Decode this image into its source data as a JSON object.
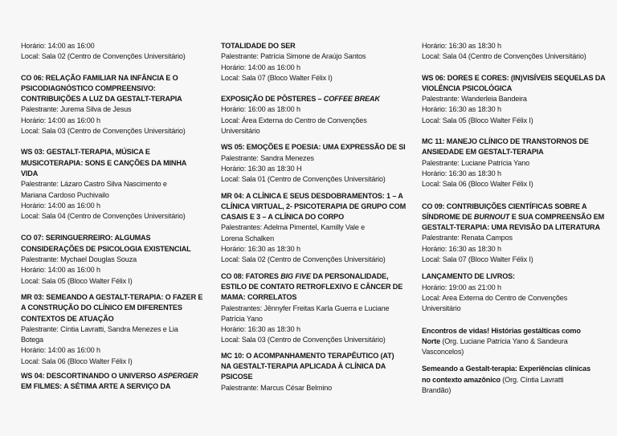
{
  "columns": [
    {
      "blocks": [
        {
          "title": [],
          "details": [
            "Horário: 14:00 as 16:00",
            "Local: Sala 02 (Centro de Convenções Universitário)"
          ]
        },
        {
          "title": [
            "CO 06: RELAÇÃO FAMILIAR NA INFÂNCIA E O",
            "PSICODIAGNÓSTICO COMPREENSIVO:",
            "CONTRIBUIÇÕES A LUZ DA GESTALT-TERAPIA"
          ],
          "details": [
            "Palestrante: Jurema Silva de Jesus",
            "Horário: 14:00  as 16:00 h",
            "Local: Sala 03 (Centro de Convenções Universitário)"
          ]
        },
        {
          "title": [
            "WS 03: GESTALT-TERAPIA, MÚSICA E",
            "MUSICOTERAPIA: SONS E CANÇÕES DA MINHA",
            "VIDA"
          ],
          "details": [
            "Palestrante: Lázaro Castro Silva Nascimento e",
            "Mariana Cardoso Puchivailo",
            "Horário: 14:00  as 16:00 h",
            "Local: Sala 04 (Centro de Convenções Universitário)"
          ]
        },
        {
          "title": [
            "CO 07: SERINGUERREIRO: ALGUMAS",
            "CONSIDERAÇÕES DE PSICOLOGIA EXISTENCIAL"
          ],
          "details": [
            "Palestrante: Mychael Douglas Souza",
            "Horário: 14:00  as 16:00 h",
            "Local: Sala 05 (Bloco Walter Félix I)"
          ]
        },
        {
          "title": [
            "MR 03: SEMEANDO A GESTALT-TERAPIA: O FAZER E",
            "A CONSTRUÇÃO DO CLÍNICO EM DIFERENTES",
            "CONTEXTOS DE ATUAÇÃO"
          ],
          "details": [
            "Palestrante: Cíntia Lavratti, Sandra Menezes e Lia",
            "Botega",
            "Horário: 14:00 as 16:00 h",
            "Local: Sala 06 (Bloco Walter Félix I)"
          ]
        },
        {
          "title": [
            [
              {
                "t": "WS 04: DESCORTINANDO O UNIVERSO "
              },
              {
                "t": "ASPERGER",
                "i": true
              }
            ],
            "EM FILMES: A SÉTIMA ARTE A SERVIÇO DA"
          ],
          "details": []
        }
      ]
    },
    {
      "blocks": [
        {
          "title": [
            "TOTALIDADE DO SER"
          ],
          "details": [
            "Palestrante: Patrícia Simone de Araújo Santos",
            "Horário: 14:00 as 16:00 h",
            "Local: Sala 07 (Bloco Walter Félix I)"
          ]
        },
        {
          "title": [
            [
              {
                "t": "EXPOSIÇÃO DE PÔSTERES – "
              },
              {
                "t": "COFFEE BREAK",
                "i": true
              }
            ]
          ],
          "details": [
            "Horário: 16:00 as 18:00 h",
            "Local: Área Externa do Centro de Convenções",
            "Universitário"
          ]
        },
        {
          "title": [
            "WS 05: EMOÇÕES E POESIA: UMA EXPRESSÃO DE SI"
          ],
          "details": [
            "Palestrante: Sandra Menezes",
            "Horário: 16:30 as 18:30 H",
            "Local: Sala 01 (Centro de Convenções Universitário)"
          ]
        },
        {
          "title": [
            "MR 04: A CLÍNICA E SEUS DESDOBRAMENTOS: 1 – A",
            "CLÍNICA VIRTUAL, 2- PSICOTERAPIA DE GRUPO COM",
            "CASAIS E 3 – A CLÍNICA DO CORPO"
          ],
          "details": [
            "Palestrantes: Adelma Pimentel, Kamilly Vale e",
            "Lorena Schalken",
            "Horário: 16:30 as 18:30 h",
            "Local: Sala 02 (Centro de Convenções Universitário)"
          ]
        },
        {
          "title": [
            [
              {
                "t": "CO 08: FATORES "
              },
              {
                "t": "BIG FIVE",
                "i": true
              },
              {
                "t": " DA PERSONALIDADE,"
              }
            ],
            "ESTILO DE CONTATO RETROFLEXIVO E CÂNCER DE",
            "MAMA: CORRELATOS"
          ],
          "details": [
            "Palestrantes: Jênnyfer Freitas Karla Guerra e Luciane",
            "Patrícia Yano",
            "Horário: 16:30 as 18:30 h",
            "Local: Sala 03 (Centro de Convenções Universitário)"
          ]
        },
        {
          "title": [
            "MC 10: O ACOMPANHAMENTO TERAPÊUTICO (AT)",
            "NA GESTALT-TERAPIA APLICADA À CLÍNICA DA",
            "PSICOSE"
          ],
          "details": [
            "Palestrante: Marcus César Belmino"
          ]
        }
      ]
    },
    {
      "blocks": [
        {
          "title": [],
          "details": [
            "Horário: 16:30 as 18:30 h",
            "Local: Sala 04 (Centro de Convenções Universitário)"
          ]
        },
        {
          "title": [
            "WS 06: DORES E CORES: (IN)VISÍVEIS SEQUELAS DA",
            "VIOLÊNCIA PSICOLÓGICA"
          ],
          "details": [
            "Palestrante: Wanderleia Bandeira",
            "Horário: 16:30 as 18:30 h",
            "Local: Sala 05 (Bloco Walter Félix I)"
          ]
        },
        {
          "title": [
            "MC 11: MANEJO CLÍNICO DE TRANSTORNOS DE",
            "ANSIEDADE EM GESTALT-TERAPIA"
          ],
          "details": [
            "Palestrante: Luciane Patrícia Yano",
            "Horário: 16:30 as 18:30 h",
            "Local: Sala 06 (Bloco Walter Félix I)"
          ]
        },
        {
          "title": [
            "CO 09: CONTRIBUIÇÕES CIENTÍFICAS SOBRE A",
            [
              {
                "t": "SÍNDROME DE "
              },
              {
                "t": "BURNOUT",
                "i": true
              },
              {
                "t": " E SUA COMPREENSÃO EM"
              }
            ],
            "GESTALT-TERAPIA: UMA REVISÃO DA LITERATURA"
          ],
          "details": [
            "Palestrante: Renata Campos",
            "Horário: 16:30 as 18:30 h",
            "Local: Sala 07 (Bloco Walter Félix I)"
          ]
        },
        {
          "title": [
            "LANÇAMENTO DE LIVROS:"
          ],
          "details": [
            "Horário: 19:00 as 21:00 h",
            "Local: Area Externa do Centro de Convenções",
            "Universitário"
          ]
        },
        {
          "title": [],
          "details": [
            [
              {
                "t": "Encontros de vidas! Histórias gestálticas como",
                "b": true
              }
            ],
            [
              {
                "t": "Norte",
                "b": true
              },
              {
                "t": " (Org. Luciane Patrícia Yano & Sandeura"
              }
            ],
            "Vasconcelos)"
          ]
        },
        {
          "title": [],
          "details": [
            [
              {
                "t": "Semeando a Gestalt-terapia: Experiências clínicas",
                "b": true
              }
            ],
            [
              {
                "t": "no contexto amazônico",
                "b": true
              },
              {
                "t": " (Org. Cíntia Lavratti"
              }
            ],
            "Brandão)"
          ]
        }
      ]
    }
  ]
}
